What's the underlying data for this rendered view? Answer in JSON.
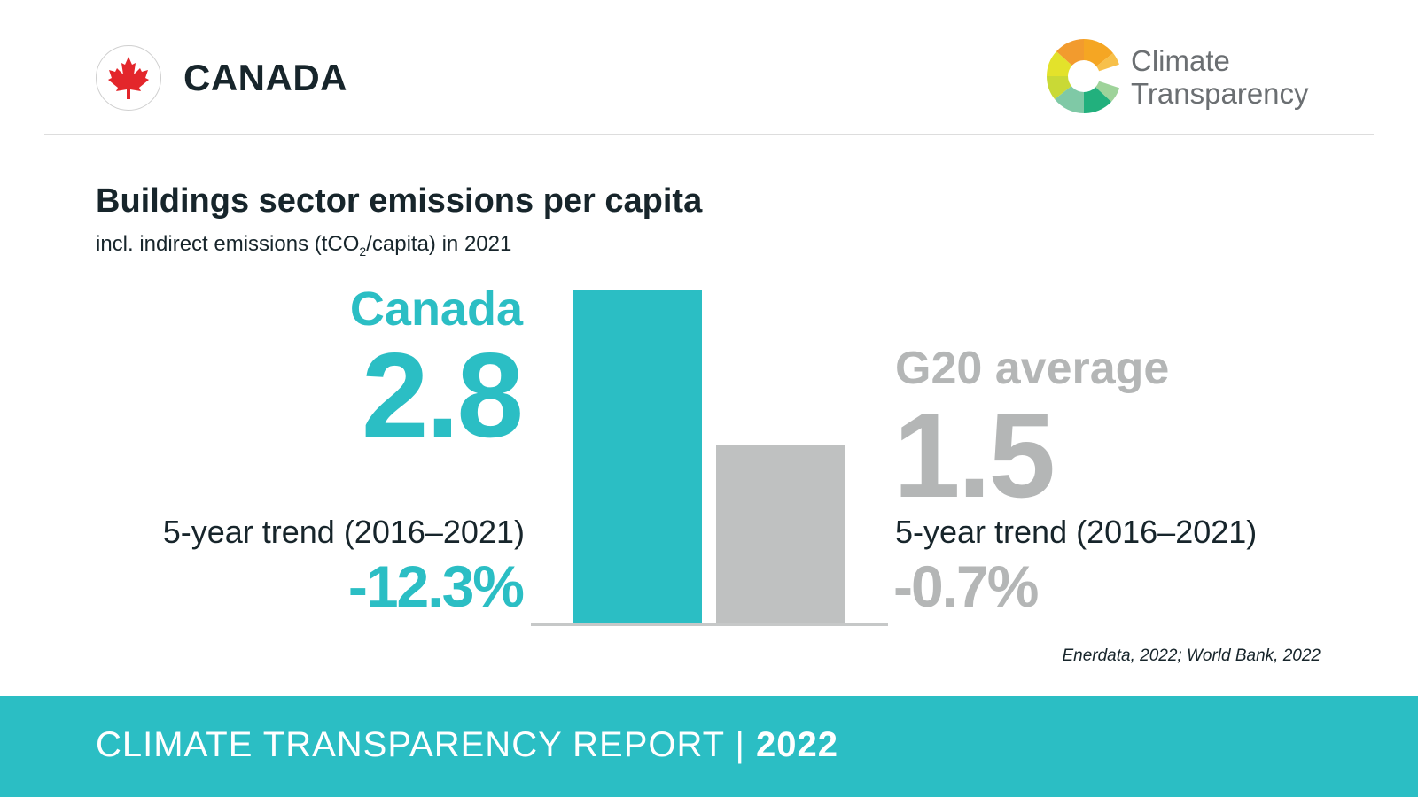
{
  "header": {
    "country": "CANADA",
    "logo_line1": "Climate",
    "logo_line2": "Transparency"
  },
  "title": "Buildings sector emissions per capita",
  "subtitle_pre": "incl. indirect emissions (tCO",
  "subtitle_sub": "2",
  "subtitle_post": "/capita) in 2021",
  "canada": {
    "name": "Canada",
    "value_label": "2.8",
    "trend_label": "5-year trend (2016–2021)",
    "trend_value": "-12.3%"
  },
  "g20": {
    "name": "G20 average",
    "value_label": "1.5",
    "trend_label": "5-year trend (2016–2021)",
    "trend_value": "-0.7%"
  },
  "chart_data": {
    "type": "bar",
    "categories": [
      "Canada",
      "G20 average"
    ],
    "values": [
      2.8,
      1.5
    ],
    "colors": [
      "#2bbec4",
      "#bfc1c1"
    ],
    "ylim": [
      0,
      2.8
    ]
  },
  "source": "Enerdata, 2022; World Bank, 2022",
  "footer": {
    "report": "CLIMATE TRANSPARENCY REPORT",
    "separator": "|",
    "year": "2022"
  },
  "colors": {
    "teal": "#2bbec4",
    "grey": "#b4b6b6",
    "dark": "#17252b"
  }
}
